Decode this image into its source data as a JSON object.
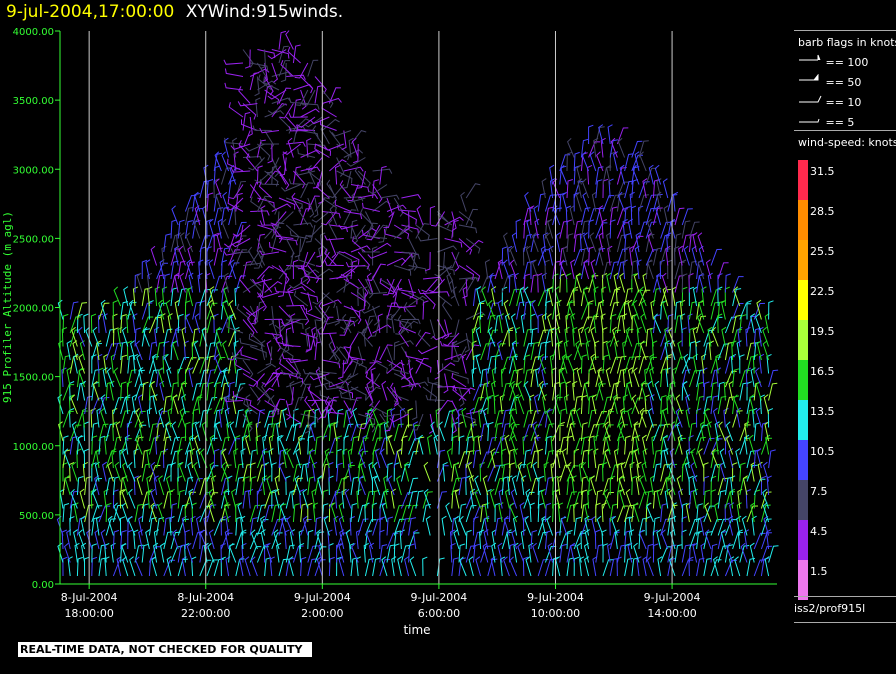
{
  "header": {
    "datetime": "9-jul-2004,17:00:00",
    "product": "XYWind:915winds."
  },
  "legend": {
    "barb_title": "barb flags in knots",
    "barb_entries": [
      "== 100",
      "== 50",
      "== 10",
      "== 5"
    ],
    "speed_title": "wind-speed: knots",
    "source": "iss2/prof915l"
  },
  "disclaimer": "REAL-TIME DATA, NOT CHECKED FOR QUALITY",
  "colors": {
    "background": "#000000",
    "axis": "#33ff33",
    "title_date": "#ffff00",
    "speed_scale": [
      "#ff2a4d",
      "#ff8c00",
      "#ffa300",
      "#ffff00",
      "#a8ff3a",
      "#22dd22",
      "#22eeee",
      "#4444ff",
      "#444466",
      "#9922ee",
      "#ee77ee"
    ]
  },
  "chart_data": {
    "type": "wind-barb time-height",
    "ylabel": "915 Profiler Altitude (m agl)",
    "xlabel": "time",
    "ylim": [
      0,
      4000
    ],
    "yticks": [
      "0.00",
      "500.00",
      "1000.00",
      "1500.00",
      "2000.00",
      "2500.00",
      "3000.00",
      "3500.00",
      "4000.00"
    ],
    "xticks": [
      {
        "date": "8-Jul-2004",
        "time": "18:00:00",
        "hours": 0
      },
      {
        "date": "8-Jul-2004",
        "time": "22:00:00",
        "hours": 4
      },
      {
        "date": "9-Jul-2004",
        "time": "2:00:00",
        "hours": 8
      },
      {
        "date": "9-Jul-2004",
        "time": "6:00:00",
        "hours": 12
      },
      {
        "date": "9-Jul-2004",
        "time": "10:00:00",
        "hours": 16
      },
      {
        "date": "9-Jul-2004",
        "time": "14:00:00",
        "hours": 20
      }
    ],
    "xlim_hours": [
      -1,
      23.6
    ],
    "speed_levels": [
      "31.5",
      "28.5",
      "25.5",
      "22.5",
      "19.5",
      "16.5",
      "13.5",
      "10.5",
      "7.5",
      "4.5",
      "1.5"
    ],
    "grid": "vertical lines at ticks"
  }
}
